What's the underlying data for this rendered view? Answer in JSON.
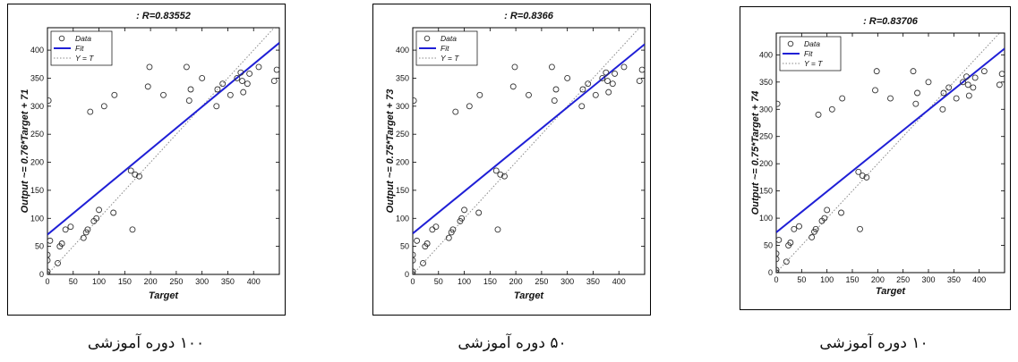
{
  "chart_data": [
    {
      "type": "scatter",
      "title": ": R=0.83552",
      "xlabel": "Target",
      "ylabel": "Output ~= 0.76*Target + 71",
      "xlim": [
        0,
        450
      ],
      "ylim": [
        0,
        440
      ],
      "xticks": [
        0,
        50,
        100,
        150,
        200,
        250,
        300,
        350,
        400
      ],
      "yticks": [
        0,
        50,
        100,
        150,
        200,
        250,
        300,
        350,
        400
      ],
      "fit": {
        "slope": 0.76,
        "intercept": 71
      },
      "legend": {
        "position": "top-left",
        "entries": [
          "Data",
          "Fit",
          "Y = T"
        ]
      },
      "caption": "۱۰۰ دوره آموزشی",
      "series": [
        {
          "name": "Data",
          "x": [
            0,
            0,
            0,
            0,
            2,
            5,
            20,
            24,
            28,
            35,
            45,
            70,
            75,
            78,
            83,
            90,
            95,
            100,
            110,
            128,
            130,
            162,
            165,
            170,
            178,
            195,
            198,
            225,
            270,
            275,
            278,
            300,
            328,
            330,
            340,
            355,
            368,
            375,
            378,
            380,
            388,
            392,
            410,
            440,
            445
          ],
          "y": [
            0,
            5,
            25,
            35,
            310,
            60,
            20,
            50,
            55,
            80,
            85,
            65,
            75,
            80,
            290,
            95,
            100,
            115,
            300,
            110,
            320,
            185,
            80,
            178,
            175,
            335,
            370,
            320,
            370,
            310,
            330,
            350,
            300,
            330,
            340,
            320,
            350,
            360,
            345,
            325,
            340,
            358,
            370,
            345,
            365
          ]
        },
        {
          "name": "Fit",
          "x": [
            0,
            450
          ],
          "y": [
            71,
            413
          ]
        },
        {
          "name": "Y = T",
          "x": [
            0,
            450
          ],
          "y": [
            0,
            450
          ]
        }
      ]
    },
    {
      "type": "scatter",
      "title": ": R=0.8366",
      "xlabel": "Target",
      "ylabel": "Output ~= 0.75*Target + 73",
      "xlim": [
        0,
        450
      ],
      "ylim": [
        0,
        440
      ],
      "xticks": [
        0,
        50,
        100,
        150,
        200,
        250,
        300,
        350,
        400
      ],
      "yticks": [
        0,
        50,
        100,
        150,
        200,
        250,
        300,
        350,
        400
      ],
      "fit": {
        "slope": 0.75,
        "intercept": 73
      },
      "legend": {
        "position": "top-left",
        "entries": [
          "Data",
          "Fit",
          "Y = T"
        ]
      },
      "caption": "۵۰ دوره آموزشی",
      "series": [
        {
          "name": "Data",
          "x": [
            0,
            0,
            0,
            0,
            2,
            8,
            20,
            24,
            28,
            38,
            45,
            70,
            75,
            78,
            83,
            92,
            95,
            100,
            110,
            128,
            130,
            162,
            165,
            170,
            178,
            195,
            198,
            225,
            270,
            275,
            278,
            300,
            328,
            330,
            340,
            355,
            368,
            375,
            378,
            380,
            388,
            392,
            410,
            440,
            445
          ],
          "y": [
            0,
            5,
            25,
            35,
            310,
            60,
            20,
            50,
            55,
            80,
            85,
            65,
            75,
            80,
            290,
            95,
            100,
            115,
            300,
            110,
            320,
            185,
            80,
            178,
            175,
            335,
            370,
            320,
            370,
            310,
            330,
            350,
            300,
            330,
            340,
            320,
            350,
            360,
            345,
            325,
            340,
            358,
            370,
            345,
            365
          ]
        },
        {
          "name": "Fit",
          "x": [
            0,
            450
          ],
          "y": [
            73,
            410.5
          ]
        },
        {
          "name": "Y = T",
          "x": [
            0,
            450
          ],
          "y": [
            0,
            450
          ]
        }
      ]
    },
    {
      "type": "scatter",
      "title": ": R=0.83706",
      "xlabel": "Target",
      "ylabel": "Output ~= 0.75*Target + 74",
      "xlim": [
        0,
        450
      ],
      "ylim": [
        0,
        440
      ],
      "xticks": [
        0,
        50,
        100,
        150,
        200,
        250,
        300,
        350,
        400
      ],
      "yticks": [
        0,
        50,
        100,
        150,
        200,
        250,
        300,
        350,
        400
      ],
      "fit": {
        "slope": 0.75,
        "intercept": 74
      },
      "legend": {
        "position": "top-left",
        "entries": [
          "Data",
          "Fit",
          "Y = T"
        ]
      },
      "caption": "۱۰ دوره آموزشی",
      "series": [
        {
          "name": "Data",
          "x": [
            0,
            0,
            0,
            0,
            2,
            5,
            20,
            24,
            28,
            35,
            45,
            70,
            75,
            78,
            83,
            90,
            95,
            100,
            110,
            128,
            130,
            162,
            165,
            170,
            178,
            195,
            198,
            225,
            270,
            275,
            278,
            300,
            328,
            330,
            340,
            355,
            368,
            375,
            378,
            380,
            388,
            392,
            410,
            440,
            445
          ],
          "y": [
            0,
            5,
            25,
            35,
            310,
            60,
            20,
            50,
            55,
            80,
            85,
            65,
            75,
            80,
            290,
            95,
            100,
            115,
            300,
            110,
            320,
            185,
            80,
            178,
            175,
            335,
            370,
            320,
            370,
            310,
            330,
            350,
            300,
            330,
            340,
            320,
            350,
            360,
            345,
            325,
            340,
            358,
            370,
            345,
            365
          ]
        },
        {
          "name": "Fit",
          "x": [
            0,
            450
          ],
          "y": [
            74,
            411.5
          ]
        },
        {
          "name": "Y = T",
          "x": [
            0,
            450
          ],
          "y": [
            0,
            450
          ]
        }
      ]
    }
  ],
  "colors": {
    "data_marker": "#333333",
    "fit_line": "#1f1fd6",
    "identity_line": "#8a8a8a"
  }
}
